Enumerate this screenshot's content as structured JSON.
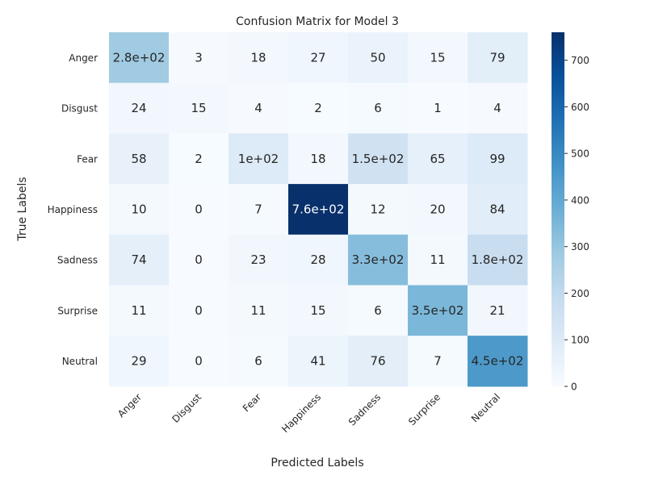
{
  "chart_data": {
    "type": "heatmap",
    "title": "Confusion Matrix for Model 3",
    "xlabel": "Predicted Labels",
    "ylabel": "True Labels",
    "x_categories": [
      "Anger",
      "Disgust",
      "Fear",
      "Happiness",
      "Sadness",
      "Surprise",
      "Neutral"
    ],
    "y_categories": [
      "Anger",
      "Disgust",
      "Fear",
      "Happiness",
      "Sadness",
      "Surprise",
      "Neutral"
    ],
    "values": [
      [
        280,
        3,
        18,
        27,
        50,
        15,
        79
      ],
      [
        24,
        15,
        4,
        2,
        6,
        1,
        4
      ],
      [
        58,
        2,
        100,
        18,
        150,
        65,
        99
      ],
      [
        10,
        0,
        7,
        760,
        12,
        20,
        84
      ],
      [
        74,
        0,
        23,
        28,
        330,
        11,
        180
      ],
      [
        11,
        0,
        11,
        15,
        6,
        350,
        21
      ],
      [
        29,
        0,
        6,
        41,
        76,
        7,
        450
      ]
    ],
    "cell_labels": [
      [
        "2.8e+02",
        "3",
        "18",
        "27",
        "50",
        "15",
        "79"
      ],
      [
        "24",
        "15",
        "4",
        "2",
        "6",
        "1",
        "4"
      ],
      [
        "58",
        "2",
        "1e+02",
        "18",
        "1.5e+02",
        "65",
        "99"
      ],
      [
        "10",
        "0",
        "7",
        "7.6e+02",
        "12",
        "20",
        "84"
      ],
      [
        "74",
        "0",
        "23",
        "28",
        "3.3e+02",
        "11",
        "1.8e+02"
      ],
      [
        "11",
        "0",
        "11",
        "15",
        "6",
        "3.5e+02",
        "21"
      ],
      [
        "29",
        "0",
        "6",
        "41",
        "76",
        "7",
        "4.5e+02"
      ]
    ],
    "colorbar": {
      "colormap": "Blues",
      "vmin": 0,
      "vmax": 760,
      "ticks": [
        0,
        100,
        200,
        300,
        400,
        500,
        600,
        700
      ]
    }
  }
}
